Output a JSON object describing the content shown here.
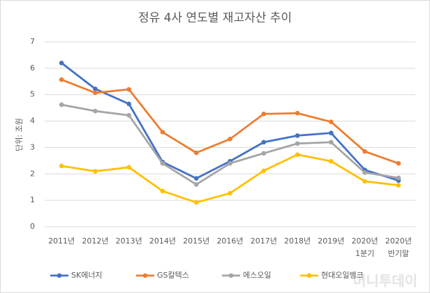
{
  "chart_data": {
    "type": "line",
    "title": "정유 4사 연도별 재고자산 추이",
    "y_label": "단위: 조원",
    "categories": [
      "2011년",
      "2012년",
      "2013년",
      "2014년",
      "2015년",
      "2016년",
      "2017년",
      "2018년",
      "2019년",
      "2020년\n1분기",
      "2020년\n반기말"
    ],
    "series": [
      {
        "name": "SK에너지",
        "color": "#4472c4",
        "values": [
          6.2,
          5.22,
          4.65,
          2.45,
          1.83,
          2.48,
          3.2,
          3.45,
          3.55,
          2.15,
          1.75
        ]
      },
      {
        "name": "GS칼텍스",
        "color": "#ed7d31",
        "values": [
          5.57,
          5.07,
          5.2,
          3.58,
          2.8,
          3.32,
          4.27,
          4.3,
          3.97,
          2.85,
          2.4
        ]
      },
      {
        "name": "에스오일",
        "color": "#a5a5a5",
        "values": [
          4.62,
          4.38,
          4.22,
          2.4,
          1.6,
          2.4,
          2.78,
          3.15,
          3.2,
          2.05,
          1.85
        ]
      },
      {
        "name": "현대오일뱅크",
        "color": "#ffc000",
        "values": [
          2.3,
          2.1,
          2.25,
          1.35,
          0.92,
          1.27,
          2.12,
          2.73,
          2.48,
          1.72,
          1.57
        ]
      }
    ],
    "ylim": [
      0,
      7
    ],
    "yticks": [
      0,
      1,
      2,
      3,
      4,
      5,
      6,
      7
    ],
    "grid": true,
    "legend": "bottom",
    "watermark": "머니투데이"
  }
}
